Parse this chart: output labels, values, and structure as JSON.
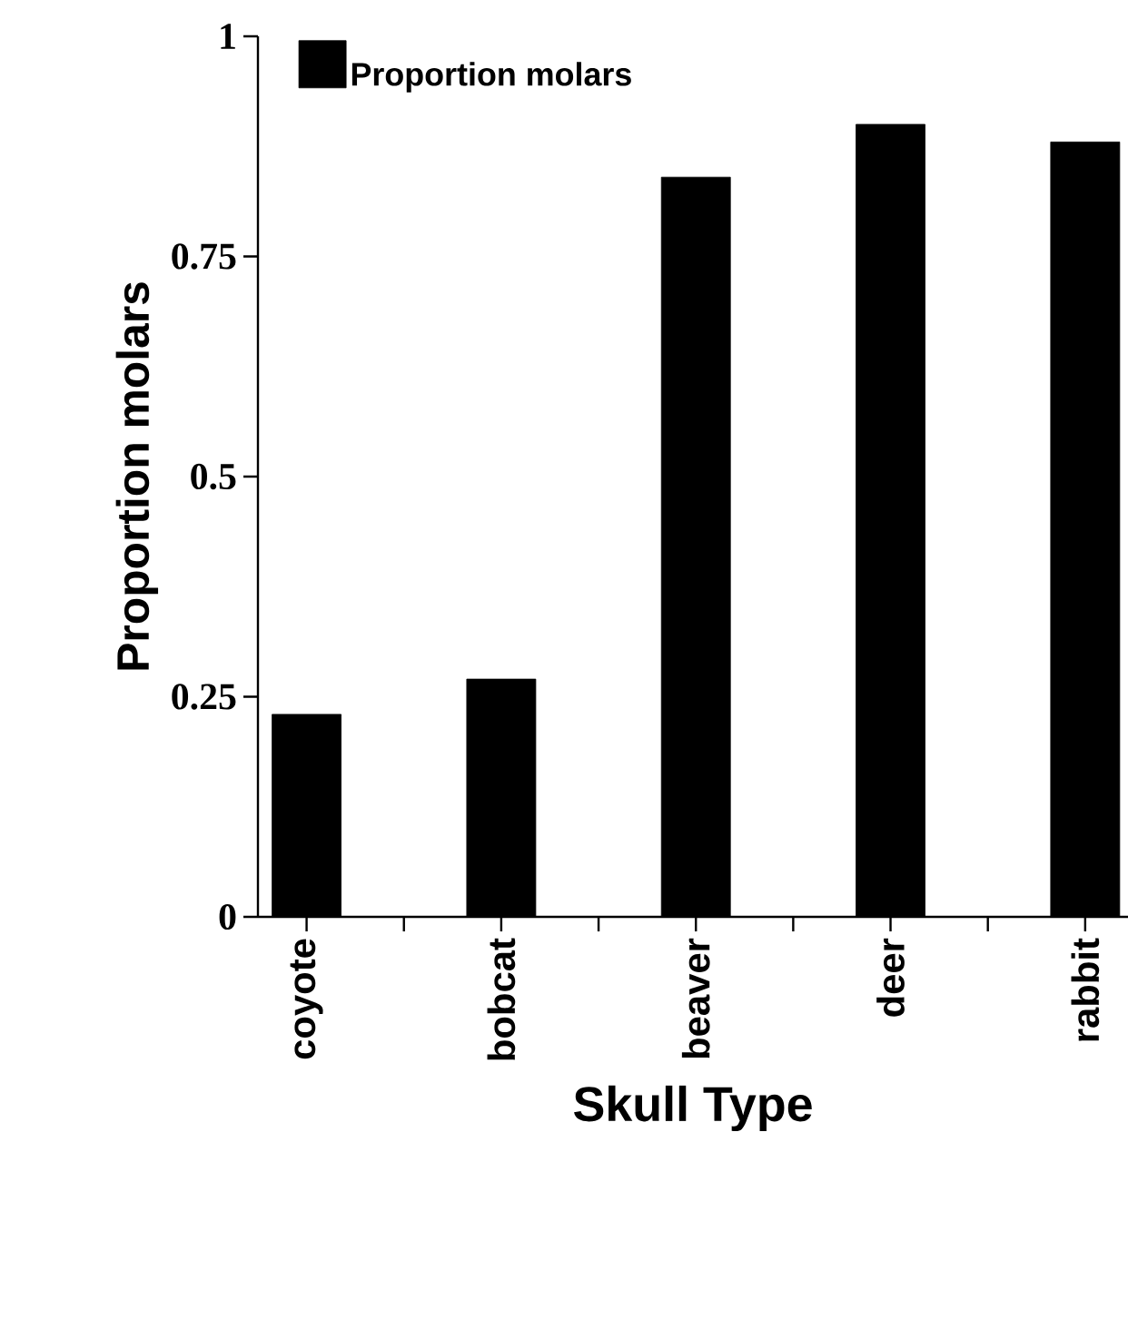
{
  "chart_data": {
    "type": "bar",
    "xlabel": "Skull Type",
    "ylabel": "Proportion molars",
    "categories": [
      "coyote",
      "bobcat",
      "beaver",
      "deer",
      "rabbit"
    ],
    "series": [
      {
        "name": "Proportion molars",
        "color": "#000000",
        "values": [
          0.23,
          0.27,
          0.84,
          0.9,
          0.88
        ]
      }
    ],
    "ylim": [
      0,
      1
    ],
    "yticks": [
      0,
      {
        "value": 0.25,
        "label": "0.25"
      },
      {
        "value": 0.5,
        "label": "0.5"
      },
      {
        "value": 0.75,
        "label": "0.75"
      },
      1
    ],
    "legend": "top left",
    "grid": false
  }
}
